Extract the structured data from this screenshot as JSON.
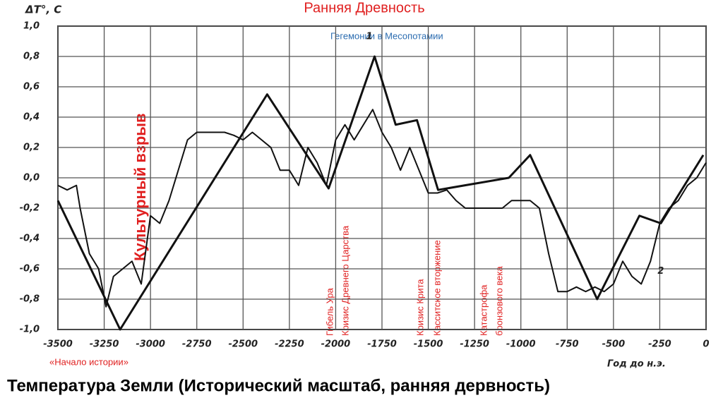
{
  "chart_data": {
    "type": "line",
    "title": "Ранняя Древность",
    "subtitle": "Температура Земли (Исторический масштаб, ранняя дервность)",
    "y_label": "ΔT°, C",
    "x_label": "Год до н.э.",
    "annotations": [
      "Гегемонии в Месопотамии",
      "Культурный взрыв",
      "Гибель Ура",
      "Кризис Древнего Царства",
      "Кризис Крита",
      "Касситское вторжение",
      "Катастрофа",
      "бронзового века",
      "«Начало истории»"
    ],
    "xlim": [
      -3500,
      0
    ],
    "ylim": [
      -1,
      1
    ],
    "xticks": [
      -3500,
      -3250,
      -3000,
      -2750,
      -2500,
      -2250,
      -2000,
      -1750,
      -1500,
      -1250,
      -1000,
      -750,
      -500,
      -250,
      0
    ],
    "yticks": [
      {
        "value": 1,
        "label": "1,0"
      },
      {
        "value": 0.8,
        "label": "0,8"
      },
      {
        "value": 0.6,
        "label": "0,6"
      },
      {
        "value": 0.4,
        "label": "0,4"
      },
      {
        "value": 0.2,
        "label": "0,2"
      },
      {
        "value": 0,
        "label": "0,0"
      },
      {
        "value": -0.2,
        "label": "-0,2"
      },
      {
        "value": -0.4,
        "label": "-0,4"
      },
      {
        "value": -0.6,
        "label": "-0,6"
      },
      {
        "value": -0.8,
        "label": "-0,8"
      },
      {
        "value": -1,
        "label": "-1,0"
      }
    ],
    "grid": true,
    "series": [
      {
        "name": "1",
        "color": "#111111",
        "x": [
          -3500,
          -3164,
          -2370,
          -2038,
          -1790,
          -1676,
          -1561,
          -1447,
          -1065,
          -950,
          -588,
          -360,
          -244,
          -15
        ],
        "values": [
          -0.15,
          -1.0,
          0.55,
          -0.07,
          0.8,
          0.35,
          0.38,
          -0.08,
          0.0,
          0.15,
          -0.8,
          -0.25,
          -0.3,
          0.15
        ]
      },
      {
        "name": "2",
        "color": "#111111",
        "x": [
          -3500,
          -3450,
          -3400,
          -3380,
          -3330,
          -3280,
          -3240,
          -3200,
          -3150,
          -3100,
          -3050,
          -3000,
          -2950,
          -2900,
          -2850,
          -2800,
          -2750,
          -2700,
          -2650,
          -2600,
          -2550,
          -2500,
          -2450,
          -2400,
          -2350,
          -2300,
          -2250,
          -2200,
          -2150,
          -2100,
          -2050,
          -2000,
          -1950,
          -1900,
          -1850,
          -1800,
          -1750,
          -1700,
          -1650,
          -1600,
          -1550,
          -1500,
          -1450,
          -1400,
          -1350,
          -1300,
          -1250,
          -1200,
          -1150,
          -1100,
          -1050,
          -1000,
          -950,
          -900,
          -850,
          -800,
          -750,
          -700,
          -650,
          -600,
          -550,
          -500,
          -450,
          -400,
          -350,
          -300,
          -250,
          -200,
          -150,
          -100,
          -50,
          0
        ],
        "values": [
          -0.05,
          -0.08,
          -0.05,
          -0.2,
          -0.5,
          -0.6,
          -0.85,
          -0.65,
          -0.6,
          -0.55,
          -0.7,
          -0.25,
          -0.3,
          -0.15,
          0.05,
          0.25,
          0.3,
          0.3,
          0.3,
          0.3,
          0.28,
          0.25,
          0.3,
          0.25,
          0.2,
          0.05,
          0.05,
          -0.05,
          0.2,
          0.1,
          -0.05,
          0.25,
          0.35,
          0.25,
          0.35,
          0.45,
          0.3,
          0.2,
          0.05,
          0.2,
          0.05,
          -0.1,
          -0.1,
          -0.08,
          -0.15,
          -0.2,
          -0.2,
          -0.2,
          -0.2,
          -0.2,
          -0.15,
          -0.15,
          -0.15,
          -0.2,
          -0.5,
          -0.75,
          -0.75,
          -0.72,
          -0.75,
          -0.72,
          -0.75,
          -0.7,
          -0.55,
          -0.65,
          -0.7,
          -0.55,
          -0.3,
          -0.2,
          -0.15,
          -0.05,
          0,
          0.1
        ]
      }
    ]
  }
}
